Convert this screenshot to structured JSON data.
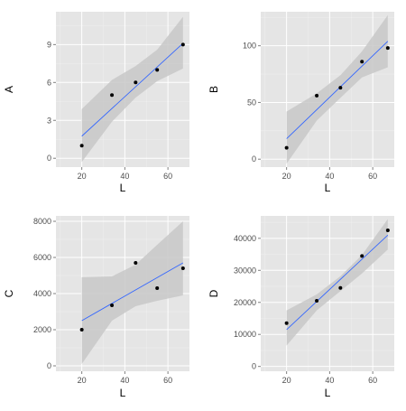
{
  "chart_data": [
    {
      "type": "scatter",
      "xlabel": "L",
      "ylabel": "A",
      "xlim": [
        8,
        70
      ],
      "ylim": [
        -0.7,
        11.6
      ],
      "xticks": [
        20,
        40,
        60
      ],
      "xtick_labels": [
        "20",
        "40",
        "60"
      ],
      "yticks": [
        0,
        3,
        6,
        9
      ],
      "ytick_labels": [
        "0",
        "3",
        "6",
        "9"
      ],
      "grid": true,
      "points": {
        "x": [
          20,
          34,
          45,
          55,
          67
        ],
        "y": [
          1,
          5,
          6,
          7,
          9
        ]
      },
      "fit": {
        "x": [
          20,
          67
        ],
        "y": [
          1.75,
          9.1
        ]
      },
      "ci": {
        "x": [
          20,
          34,
          45,
          55,
          67
        ],
        "upper": [
          3.9,
          6.2,
          7.3,
          8.6,
          11.2
        ],
        "lower": [
          -0.3,
          2.9,
          4.8,
          6.1,
          7.1
        ]
      }
    },
    {
      "type": "scatter",
      "xlabel": "L",
      "ylabel": "B",
      "xlim": [
        8,
        70
      ],
      "ylim": [
        -7,
        130
      ],
      "xticks": [
        20,
        40,
        60
      ],
      "xtick_labels": [
        "20",
        "40",
        "60"
      ],
      "yticks": [
        0,
        50,
        100
      ],
      "ytick_labels": [
        "0",
        "50",
        "100"
      ],
      "grid": true,
      "points": {
        "x": [
          20,
          34,
          45,
          55,
          67
        ],
        "y": [
          10,
          56,
          63,
          86,
          98
        ]
      },
      "fit": {
        "x": [
          20,
          67
        ],
        "y": [
          18,
          104
        ]
      },
      "ci": {
        "x": [
          20,
          34,
          45,
          55,
          67
        ],
        "upper": [
          42,
          58,
          74,
          95,
          127
        ],
        "lower": [
          -4,
          34,
          54,
          72,
          81
        ]
      }
    },
    {
      "type": "scatter",
      "xlabel": "L",
      "ylabel": "C",
      "xlim": [
        8,
        70
      ],
      "ylim": [
        -300,
        8300
      ],
      "xticks": [
        20,
        40,
        60
      ],
      "xtick_labels": [
        "20",
        "40",
        "60"
      ],
      "yticks": [
        0,
        2000,
        4000,
        6000,
        8000
      ],
      "ytick_labels": [
        "0",
        "2000",
        "4000",
        "6000",
        "8000"
      ],
      "grid": true,
      "points": {
        "x": [
          20,
          34,
          45,
          55,
          67
        ],
        "y": [
          2000,
          3350,
          5700,
          4300,
          5400
        ]
      },
      "fit": {
        "x": [
          20,
          67
        ],
        "y": [
          2500,
          5700
        ]
      },
      "ci": {
        "x": [
          20,
          34,
          45,
          55,
          67
        ],
        "upper": [
          4900,
          4950,
          5600,
          6700,
          8000
        ],
        "lower": [
          100,
          2500,
          3300,
          3600,
          3900
        ]
      }
    },
    {
      "type": "scatter",
      "xlabel": "L",
      "ylabel": "D",
      "xlim": [
        8,
        70
      ],
      "ylim": [
        -1500,
        47000
      ],
      "xticks": [
        20,
        40,
        60
      ],
      "xtick_labels": [
        "20",
        "40",
        "60"
      ],
      "yticks": [
        0,
        10000,
        20000,
        30000,
        40000
      ],
      "ytick_labels": [
        "0",
        "10000",
        "20000",
        "30000",
        "40000"
      ],
      "grid": true,
      "points": {
        "x": [
          20,
          34,
          45,
          55,
          67
        ],
        "y": [
          13500,
          20500,
          24500,
          34500,
          42500
        ]
      },
      "fit": {
        "x": [
          20,
          67
        ],
        "y": [
          11500,
          41000
        ]
      },
      "ci": {
        "x": [
          20,
          34,
          45,
          55,
          67
        ],
        "upper": [
          17500,
          22500,
          28200,
          34800,
          46000
        ],
        "lower": [
          6500,
          17500,
          23500,
          29000,
          36500
        ]
      }
    }
  ],
  "colors": {
    "panel_bg": "#e5e5e5",
    "grid": "#f5f5f5",
    "band": "#c8c8c8",
    "fit_line": "#3366ff",
    "point": "#000000",
    "tick_text": "#4d4d4d",
    "axis_title": "#000000"
  }
}
